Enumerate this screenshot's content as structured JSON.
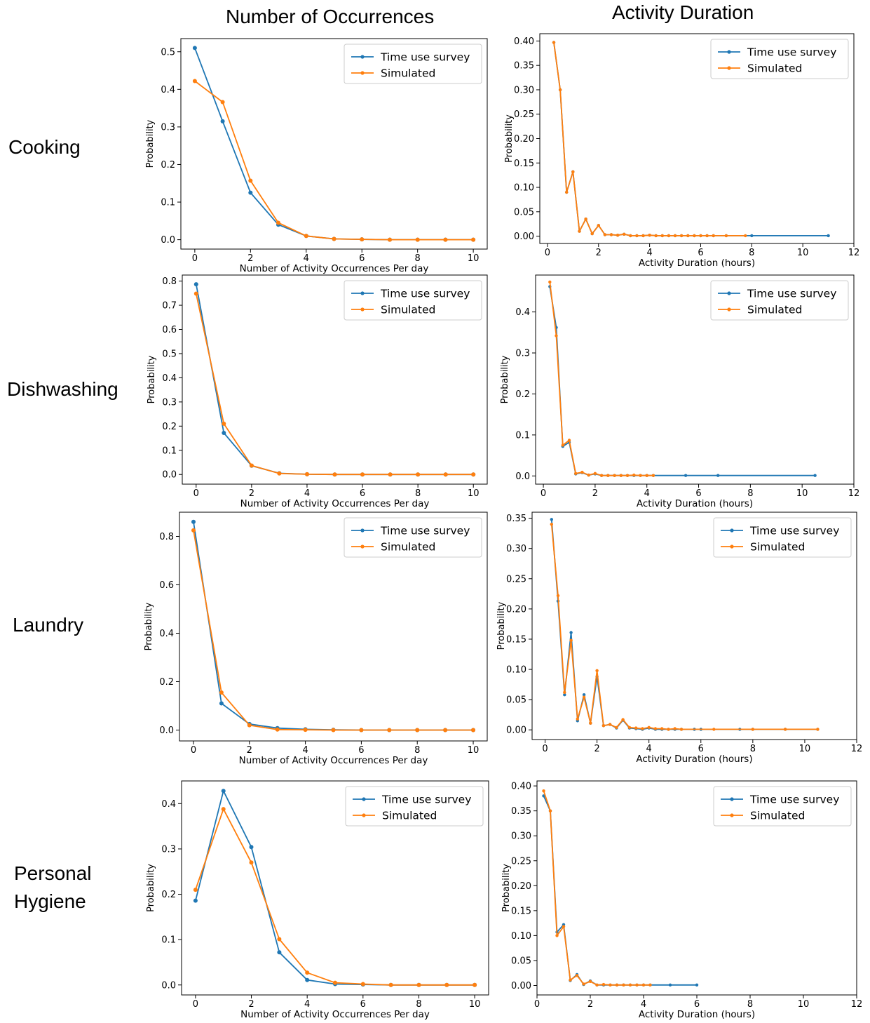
{
  "col_titles": [
    "Number of Occurrences",
    "Activity Duration"
  ],
  "row_labels": {
    "cooking": "Cooking",
    "dishwashing": "Dishwashing",
    "laundry": "Laundry",
    "hygiene_1": "Personal",
    "hygiene_2": "Hygiene"
  },
  "colors": {
    "survey": "#1f77b4",
    "simulated": "#ff7f0e"
  },
  "chart_data": [
    {
      "type": "line",
      "panel": "cooking-occurrences",
      "xlabel": "Number of Activity Occurrences Per day",
      "ylabel": "Probability",
      "xlim": [
        -0.5,
        10.5
      ],
      "ylim": [
        -0.025,
        0.535
      ],
      "xticks": [
        0,
        2,
        4,
        6,
        8,
        10
      ],
      "yticks": [
        0.0,
        0.1,
        0.2,
        0.3,
        0.4,
        0.5
      ],
      "xtick_labels": [
        "0",
        "2",
        "4",
        "6",
        "8",
        "10"
      ],
      "ytick_labels": [
        "0.0",
        "0.1",
        "0.2",
        "0.3",
        "0.4",
        "0.5"
      ],
      "legend_position": "top-right",
      "series": [
        {
          "name": "Time use survey",
          "x": [
            0,
            1,
            2,
            3,
            4,
            5,
            6,
            7,
            8,
            9,
            10
          ],
          "y": [
            0.51,
            0.315,
            0.125,
            0.04,
            0.01,
            0.002,
            0.001,
            0,
            0,
            0,
            0
          ]
        },
        {
          "name": "Simulated",
          "x": [
            0,
            1,
            2,
            3,
            4,
            5,
            6,
            7,
            8,
            9,
            10
          ],
          "y": [
            0.422,
            0.366,
            0.157,
            0.045,
            0.01,
            0.002,
            0.001,
            0,
            0,
            0,
            0
          ]
        }
      ]
    },
    {
      "type": "line",
      "panel": "cooking-duration",
      "xlabel": "Activity Duration (hours)",
      "ylabel": "Probability",
      "xlim": [
        -0.3,
        12
      ],
      "ylim": [
        -0.015,
        0.415
      ],
      "xticks": [
        0,
        2,
        4,
        6,
        8,
        10,
        12
      ],
      "yticks": [
        0,
        0.05,
        0.1,
        0.15,
        0.2,
        0.25,
        0.3,
        0.35,
        0.4
      ],
      "xtick_labels": [
        "0",
        "2",
        "4",
        "6",
        "8",
        "10",
        "12"
      ],
      "ytick_labels": [
        "0.00",
        "0.05",
        "0.10",
        "0.15",
        "0.20",
        "0.25",
        "0.30",
        "0.35",
        "0.40"
      ],
      "legend_position": "top-right",
      "series": [
        {
          "name": "Time use survey",
          "x": [
            0.25,
            0.5,
            0.75,
            1,
            1.25,
            1.5,
            1.75,
            2,
            2.25,
            2.5,
            2.75,
            3,
            3.25,
            3.5,
            3.75,
            4,
            4.25,
            4.5,
            4.75,
            5,
            5.25,
            5.5,
            5.75,
            6,
            6.25,
            6.5,
            7,
            8,
            11
          ],
          "y": [
            0.397,
            0.3,
            0.09,
            0.132,
            0.01,
            0.035,
            0.005,
            0.022,
            0.003,
            0.003,
            0.002,
            0.004,
            0.001,
            0.001,
            0.001,
            0.002,
            0.001,
            0.001,
            0.001,
            0.001,
            0.001,
            0.001,
            0.001,
            0.001,
            0.001,
            0.001,
            0.001,
            0.001,
            0.001
          ]
        },
        {
          "name": "Simulated",
          "x": [
            0.25,
            0.5,
            0.75,
            1,
            1.25,
            1.5,
            1.75,
            2,
            2.25,
            2.5,
            2.75,
            3,
            3.25,
            3.5,
            3.75,
            4,
            4.25,
            4.5,
            4.75,
            5,
            5.25,
            5.5,
            5.75,
            6,
            6.25,
            6.5,
            7,
            7.75
          ],
          "y": [
            0.397,
            0.3,
            0.09,
            0.132,
            0.01,
            0.035,
            0.005,
            0.022,
            0.003,
            0.003,
            0.002,
            0.004,
            0.001,
            0.001,
            0.001,
            0.002,
            0.001,
            0.001,
            0.001,
            0.001,
            0.001,
            0.001,
            0.001,
            0.001,
            0.001,
            0.001,
            0.001,
            0.001
          ]
        }
      ]
    },
    {
      "type": "line",
      "panel": "dishwashing-occurrences",
      "xlabel": "Number of Activity Occurrences Per day",
      "ylabel": "Probability",
      "xlim": [
        -0.5,
        10.5
      ],
      "ylim": [
        -0.04,
        0.825
      ],
      "xticks": [
        0,
        2,
        4,
        6,
        8,
        10
      ],
      "yticks": [
        0,
        0.1,
        0.2,
        0.3,
        0.4,
        0.5,
        0.6,
        0.7,
        0.8
      ],
      "xtick_labels": [
        "0",
        "2",
        "4",
        "6",
        "8",
        "10"
      ],
      "ytick_labels": [
        "0.0",
        "0.1",
        "0.2",
        "0.3",
        "0.4",
        "0.5",
        "0.6",
        "0.7",
        "0.8"
      ],
      "legend_position": "top-right",
      "series": [
        {
          "name": "Time use survey",
          "x": [
            0,
            1,
            2,
            3,
            4,
            5,
            6,
            7,
            8,
            9,
            10
          ],
          "y": [
            0.787,
            0.172,
            0.036,
            0.005,
            0.001,
            0,
            0,
            0,
            0,
            0,
            0
          ]
        },
        {
          "name": "Simulated",
          "x": [
            0,
            1,
            2,
            3,
            4,
            5,
            6,
            7,
            8,
            9,
            10
          ],
          "y": [
            0.748,
            0.21,
            0.037,
            0.004,
            0.001,
            0,
            0,
            0,
            0,
            0,
            0
          ]
        }
      ]
    },
    {
      "type": "line",
      "panel": "dishwashing-duration",
      "xlabel": "Activity Duration (hours)",
      "ylabel": "Probability",
      "xlim": [
        -0.3,
        12
      ],
      "ylim": [
        -0.02,
        0.49
      ],
      "xticks": [
        0,
        2,
        4,
        6,
        8,
        10,
        12
      ],
      "yticks": [
        0,
        0.1,
        0.2,
        0.3,
        0.4
      ],
      "xtick_labels": [
        "0",
        "2",
        "4",
        "6",
        "8",
        "10",
        "12"
      ],
      "ytick_labels": [
        "0.0",
        "0.1",
        "0.2",
        "0.3",
        "0.4"
      ],
      "legend_position": "top-right",
      "series": [
        {
          "name": "Time use survey",
          "x": [
            0.25,
            0.5,
            0.75,
            1,
            1.25,
            1.5,
            1.75,
            2,
            2.25,
            2.5,
            2.75,
            3,
            3.25,
            3.5,
            3.75,
            4,
            4.25,
            5.5,
            6.75,
            10.5
          ],
          "y": [
            0.462,
            0.362,
            0.072,
            0.082,
            0.005,
            0.008,
            0.002,
            0.005,
            0.001,
            0.001,
            0.001,
            0.001,
            0.001,
            0.001,
            0.001,
            0.001,
            0.001,
            0.001,
            0.001,
            0.001
          ]
        },
        {
          "name": "Simulated",
          "x": [
            0.25,
            0.5,
            0.75,
            1,
            1.25,
            1.5,
            1.75,
            2,
            2.25,
            2.5,
            2.75,
            3,
            3.25,
            3.5,
            3.75,
            4,
            4.25
          ],
          "y": [
            0.473,
            0.342,
            0.075,
            0.087,
            0.006,
            0.009,
            0.002,
            0.006,
            0.001,
            0.001,
            0.001,
            0.001,
            0.001,
            0.002,
            0.001,
            0.001,
            0.001
          ]
        }
      ]
    },
    {
      "type": "line",
      "panel": "laundry-occurrences",
      "xlabel": "Number of Activity Occurrences Per day",
      "ylabel": "Probability",
      "xlim": [
        -0.5,
        10.5
      ],
      "ylim": [
        -0.045,
        0.9
      ],
      "xticks": [
        0,
        2,
        4,
        6,
        8,
        10
      ],
      "yticks": [
        0,
        0.2,
        0.4,
        0.6,
        0.8
      ],
      "xtick_labels": [
        "0",
        "2",
        "4",
        "6",
        "8",
        "10"
      ],
      "ytick_labels": [
        "0.0",
        "0.2",
        "0.4",
        "0.6",
        "0.8"
      ],
      "legend_position": "top-right",
      "series": [
        {
          "name": "Time use survey",
          "x": [
            0,
            1,
            2,
            3,
            4,
            5,
            6,
            7,
            8,
            9,
            10
          ],
          "y": [
            0.86,
            0.11,
            0.025,
            0.008,
            0.003,
            0.001,
            0,
            0,
            0,
            0,
            0
          ]
        },
        {
          "name": "Simulated",
          "x": [
            0,
            1,
            2,
            3,
            4,
            5,
            6,
            7,
            8,
            9,
            10
          ],
          "y": [
            0.825,
            0.155,
            0.02,
            0.002,
            0.001,
            0,
            0,
            0,
            0,
            0,
            0
          ]
        }
      ]
    },
    {
      "type": "line",
      "panel": "laundry-duration",
      "xlabel": "Activity Duration (hours)",
      "ylabel": "Probability",
      "xlim": [
        -0.5,
        12
      ],
      "ylim": [
        -0.016,
        0.36
      ],
      "xticks": [
        0,
        2,
        4,
        6,
        8,
        10,
        12
      ],
      "yticks": [
        0,
        0.05,
        0.1,
        0.15,
        0.2,
        0.25,
        0.3,
        0.35
      ],
      "xtick_labels": [
        "0",
        "2",
        "4",
        "6",
        "8",
        "10",
        "12"
      ],
      "ytick_labels": [
        "0.00",
        "0.05",
        "0.10",
        "0.15",
        "0.20",
        "0.25",
        "0.30",
        "0.35"
      ],
      "legend_position": "top-right",
      "series": [
        {
          "name": "Time use survey",
          "x": [
            0.25,
            0.5,
            0.75,
            1,
            1.25,
            1.5,
            1.75,
            2,
            2.25,
            2.5,
            2.75,
            3,
            3.25,
            3.5,
            3.75,
            4,
            4.25,
            4.5,
            4.75,
            5,
            5.25,
            5.75,
            6,
            7.5,
            8,
            9.25,
            10.5
          ],
          "y": [
            0.348,
            0.213,
            0.058,
            0.161,
            0.015,
            0.058,
            0.011,
            0.088,
            0.007,
            0.009,
            0.003,
            0.016,
            0.003,
            0.002,
            0.001,
            0.003,
            0.001,
            0.001,
            0.001,
            0.001,
            0.001,
            0.001,
            0.001,
            0.001,
            0.001,
            0.001,
            0.001
          ]
        },
        {
          "name": "Simulated",
          "x": [
            0.25,
            0.5,
            0.75,
            1,
            1.25,
            1.5,
            1.75,
            2,
            2.25,
            2.5,
            2.75,
            3,
            3.25,
            3.5,
            3.75,
            4,
            4.25,
            4.5,
            4.75,
            5,
            5.25,
            6.5,
            8,
            9.25,
            10.5
          ],
          "y": [
            0.34,
            0.222,
            0.062,
            0.148,
            0.018,
            0.054,
            0.011,
            0.098,
            0.007,
            0.009,
            0.004,
            0.017,
            0.004,
            0.003,
            0.002,
            0.004,
            0.002,
            0.002,
            0.001,
            0.002,
            0.001,
            0.001,
            0.001,
            0.001,
            0.001
          ]
        }
      ]
    },
    {
      "type": "line",
      "panel": "hygiene-occurrences",
      "xlabel": "Number of Activity Occurrences Per day",
      "ylabel": "Probability",
      "xlim": [
        -0.5,
        10.5
      ],
      "ylim": [
        -0.022,
        0.45
      ],
      "xticks": [
        0,
        2,
        4,
        6,
        8,
        10
      ],
      "yticks": [
        0,
        0.1,
        0.2,
        0.3,
        0.4
      ],
      "xtick_labels": [
        "0",
        "2",
        "4",
        "6",
        "8",
        "10"
      ],
      "ytick_labels": [
        "0.0",
        "0.1",
        "0.2",
        "0.3",
        "0.4"
      ],
      "legend_position": "top-right",
      "series": [
        {
          "name": "Time use survey",
          "x": [
            0,
            1,
            2,
            3,
            4,
            5,
            6,
            7,
            8,
            9,
            10
          ],
          "y": [
            0.186,
            0.428,
            0.304,
            0.072,
            0.011,
            0.002,
            0.001,
            0,
            0,
            0,
            0
          ]
        },
        {
          "name": "Simulated",
          "x": [
            0,
            1,
            2,
            3,
            4,
            5,
            6,
            7,
            8,
            9,
            10
          ],
          "y": [
            0.21,
            0.388,
            0.27,
            0.101,
            0.027,
            0.005,
            0.002,
            0,
            0,
            0,
            0
          ]
        }
      ]
    },
    {
      "type": "line",
      "panel": "hygiene-duration",
      "xlabel": "Activity Duration (hours)",
      "ylabel": "Probability",
      "xlim": [
        0,
        12
      ],
      "ylim": [
        -0.019,
        0.41
      ],
      "xticks": [
        0,
        2,
        4,
        6,
        8,
        10,
        12
      ],
      "yticks": [
        0,
        0.05,
        0.1,
        0.15,
        0.2,
        0.25,
        0.3,
        0.35,
        0.4
      ],
      "xtick_labels": [
        "0",
        "2",
        "4",
        "6",
        "8",
        "10",
        "12"
      ],
      "ytick_labels": [
        "0.00",
        "0.05",
        "0.10",
        "0.15",
        "0.20",
        "0.25",
        "0.30",
        "0.35",
        "0.40"
      ],
      "legend_position": "top-right",
      "series": [
        {
          "name": "Time use survey",
          "x": [
            0.25,
            0.5,
            0.75,
            1,
            1.25,
            1.5,
            1.75,
            2,
            2.25,
            2.5,
            2.75,
            3,
            3.25,
            3.5,
            3.75,
            4,
            4.25,
            5,
            6
          ],
          "y": [
            0.38,
            0.35,
            0.107,
            0.122,
            0.01,
            0.022,
            0.002,
            0.009,
            0.001,
            0.001,
            0.001,
            0.001,
            0.001,
            0.001,
            0.001,
            0.001,
            0.001,
            0.001,
            0.001
          ]
        },
        {
          "name": "Simulated",
          "x": [
            0.25,
            0.5,
            0.75,
            1,
            1.25,
            1.5,
            1.75,
            2,
            2.25,
            2.5,
            2.75,
            3,
            3.25,
            3.5,
            3.75,
            4,
            4.25
          ],
          "y": [
            0.39,
            0.35,
            0.1,
            0.118,
            0.011,
            0.02,
            0.003,
            0.008,
            0.001,
            0.002,
            0.001,
            0.001,
            0.001,
            0.001,
            0.001,
            0.001,
            0.001
          ]
        }
      ]
    }
  ]
}
